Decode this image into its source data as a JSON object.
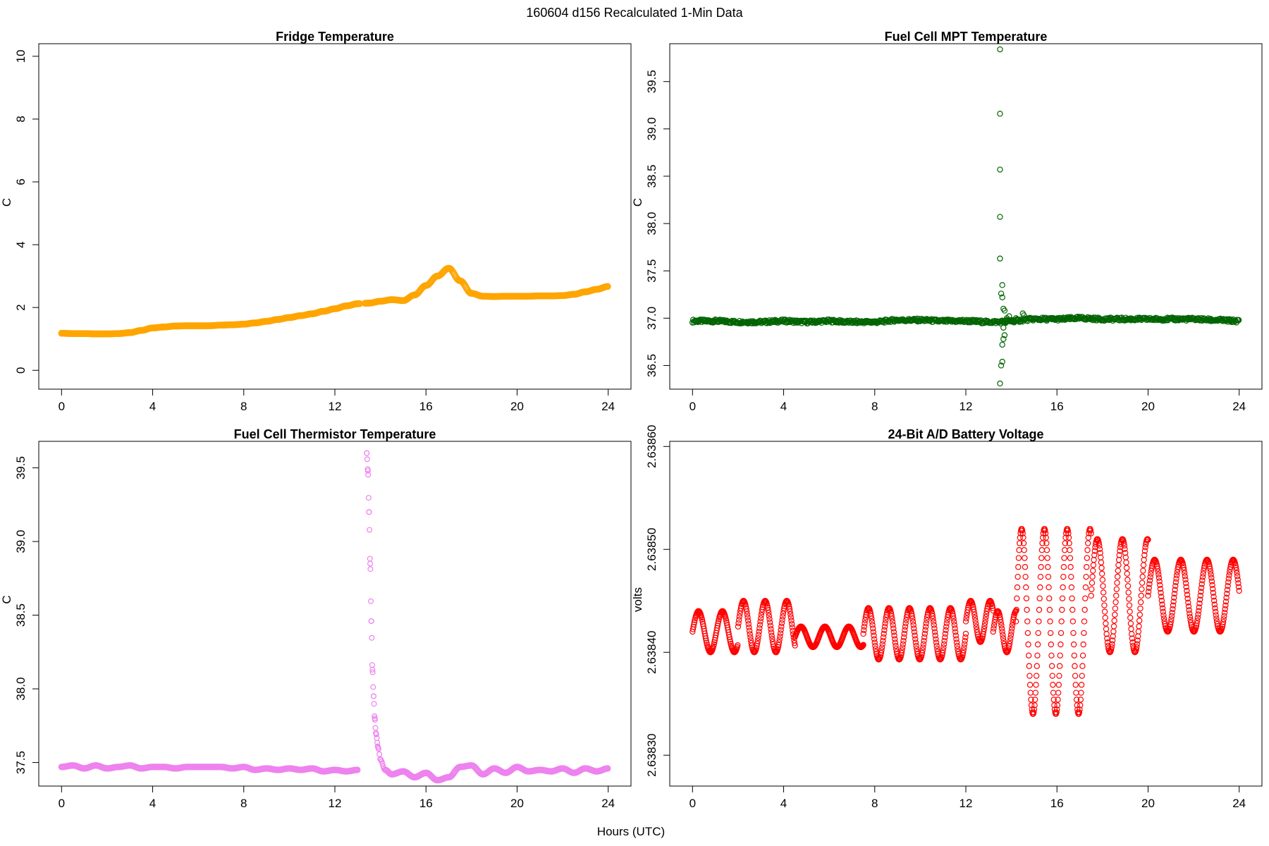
{
  "suptitle": "160604   d156   Recalculated 1-Min Data",
  "xlabel": "Hours (UTC)",
  "chart_data": [
    {
      "type": "scatter",
      "title": "Fridge Temperature",
      "ylabel": "C",
      "color": "#ffa500",
      "xlim": [
        -1,
        25
      ],
      "ylim": [
        -0.6,
        10.4
      ],
      "xticks": [
        0,
        4,
        8,
        12,
        16,
        20,
        24
      ],
      "yticks": [
        0,
        2,
        4,
        6,
        8,
        10
      ],
      "ytick_labels": [
        "0",
        "2",
        "4",
        "6",
        "8",
        "10"
      ],
      "x": [
        0.0,
        0.5,
        1.0,
        1.5,
        2.0,
        2.5,
        3.0,
        3.5,
        4.0,
        4.5,
        5.0,
        5.5,
        6.0,
        6.5,
        7.0,
        7.5,
        8.0,
        8.5,
        9.0,
        9.5,
        10.0,
        10.5,
        11.0,
        11.5,
        12.0,
        12.5,
        13.0,
        13.5,
        14.0,
        14.5,
        15.0,
        15.5,
        16.0,
        16.5,
        17.0,
        17.5,
        18.0,
        18.5,
        19.0,
        19.5,
        20.0,
        20.5,
        21.0,
        21.5,
        22.0,
        22.5,
        23.0,
        23.5,
        24.0
      ],
      "y": [
        1.18,
        1.17,
        1.17,
        1.16,
        1.16,
        1.17,
        1.2,
        1.27,
        1.35,
        1.38,
        1.41,
        1.42,
        1.42,
        1.42,
        1.44,
        1.45,
        1.47,
        1.51,
        1.56,
        1.62,
        1.68,
        1.74,
        1.8,
        1.88,
        1.96,
        2.05,
        2.12,
        2.14,
        2.2,
        2.25,
        2.22,
        2.4,
        2.7,
        3.0,
        3.25,
        2.85,
        2.45,
        2.36,
        2.35,
        2.36,
        2.36,
        2.36,
        2.37,
        2.37,
        2.38,
        2.42,
        2.5,
        2.58,
        2.67
      ],
      "gaps": [
        [
          13.1,
          13.3
        ]
      ]
    },
    {
      "type": "scatter",
      "title": "Fuel Cell MPT Temperature",
      "ylabel": "C",
      "color": "#006400",
      "xlim": [
        -1,
        25
      ],
      "ylim": [
        36.25,
        39.9
      ],
      "xticks": [
        0,
        4,
        8,
        12,
        16,
        20,
        24
      ],
      "yticks": [
        36.5,
        37.0,
        37.5,
        38.0,
        38.5,
        39.0,
        39.5
      ],
      "ytick_labels": [
        "36.5",
        "37.0",
        "37.5",
        "38.0",
        "38.5",
        "39.0",
        "39.5"
      ],
      "x": [
        0.0,
        1.0,
        2.0,
        3.0,
        4.0,
        5.0,
        6.0,
        7.0,
        8.0,
        9.0,
        10.0,
        11.0,
        12.0,
        13.0,
        13.4,
        14.0,
        15.0,
        16.0,
        17.0,
        18.0,
        19.0,
        20.0,
        21.0,
        22.0,
        23.0,
        24.0
      ],
      "y": [
        36.97,
        36.97,
        36.96,
        36.96,
        36.97,
        36.96,
        36.97,
        36.96,
        36.96,
        36.98,
        36.98,
        36.97,
        36.97,
        36.96,
        36.96,
        36.97,
        36.99,
        36.99,
        37.0,
        36.99,
        36.99,
        36.99,
        36.99,
        36.99,
        36.98,
        36.97
      ],
      "outliers": {
        "x": [
          13.5,
          13.5,
          13.5,
          13.5,
          13.5,
          13.55,
          13.6,
          13.6,
          13.65,
          13.7,
          13.6,
          13.65,
          13.7,
          13.55,
          13.6,
          13.65,
          13.75,
          13.8,
          13.85,
          13.9,
          14.0,
          14.2,
          14.5,
          14.55
        ],
        "y": [
          39.84,
          39.16,
          38.57,
          38.07,
          37.63,
          37.26,
          37.22,
          37.35,
          37.1,
          37.08,
          36.72,
          36.78,
          36.82,
          36.5,
          36.54,
          36.9,
          36.95,
          37.0,
          36.97,
          37.02,
          36.98,
          37.0,
          37.05,
          37.03
        ]
      },
      "spike_low": 36.31
    },
    {
      "type": "scatter",
      "title": "Fuel Cell Thermistor Temperature",
      "ylabel": "C",
      "color": "#ee82ee",
      "xlim": [
        -1,
        25
      ],
      "ylim": [
        37.34,
        39.68
      ],
      "xticks": [
        0,
        4,
        8,
        12,
        16,
        20,
        24
      ],
      "yticks": [
        37.5,
        38.0,
        38.5,
        39.0,
        39.5
      ],
      "ytick_labels": [
        "37.5",
        "38.0",
        "38.5",
        "39.0",
        "39.5"
      ],
      "x": [
        0.0,
        0.5,
        1.0,
        1.5,
        2.0,
        2.5,
        3.0,
        3.5,
        4.0,
        4.5,
        5.0,
        5.5,
        6.0,
        6.5,
        7.0,
        7.5,
        8.0,
        8.5,
        9.0,
        9.5,
        10.0,
        10.5,
        11.0,
        11.5,
        12.0,
        12.5,
        13.0
      ],
      "y": [
        37.47,
        37.48,
        37.46,
        37.48,
        37.46,
        37.47,
        37.48,
        37.46,
        37.47,
        37.47,
        37.46,
        37.47,
        37.47,
        37.47,
        37.47,
        37.46,
        37.47,
        37.45,
        37.46,
        37.45,
        37.46,
        37.45,
        37.46,
        37.44,
        37.45,
        37.44,
        37.45
      ],
      "decay": {
        "x": [
          13.4,
          13.45,
          13.5,
          13.55,
          13.6,
          13.65,
          13.7,
          13.75,
          13.8,
          13.9,
          14.0,
          14.2,
          14.5,
          15.0,
          15.5,
          16.0,
          16.5,
          17.0,
          17.5,
          18.0,
          18.5,
          19.0,
          19.5,
          20.0,
          20.5,
          21.0,
          21.5,
          22.0,
          22.5,
          23.0,
          23.5,
          24.0
        ],
        "y": [
          39.6,
          39.48,
          39.2,
          38.85,
          38.46,
          38.13,
          37.95,
          37.8,
          37.7,
          37.6,
          37.52,
          37.45,
          37.42,
          37.44,
          37.4,
          37.43,
          37.38,
          37.4,
          37.47,
          37.48,
          37.42,
          37.46,
          37.43,
          37.47,
          37.44,
          37.45,
          37.44,
          37.46,
          37.43,
          37.46,
          37.44,
          37.46
        ]
      }
    },
    {
      "type": "scatter",
      "title": "24-Bit A/D Battery Voltage",
      "ylabel": "volts",
      "color": "#ff0000",
      "xlim": [
        -1,
        25
      ],
      "ylim": [
        2.63827,
        2.638605
      ],
      "xticks": [
        0,
        4,
        8,
        12,
        16,
        20,
        24
      ],
      "yticks": [
        2.6383,
        2.6384,
        2.6385,
        2.6386
      ],
      "ytick_labels": [
        "2.63830",
        "2.63840",
        "2.63850",
        "2.63860"
      ],
      "oscillation": [
        {
          "t0": 0.0,
          "t1": 2.0,
          "center": 2.63842,
          "amp": 2e-05,
          "period": 1.05
        },
        {
          "t0": 2.0,
          "t1": 4.5,
          "center": 2.638425,
          "amp": 2.5e-05,
          "period": 0.95
        },
        {
          "t0": 4.5,
          "t1": 7.5,
          "center": 2.638415,
          "amp": 1e-05,
          "period": 1.05
        },
        {
          "t0": 7.5,
          "t1": 12.0,
          "center": 2.638418,
          "amp": 2.5e-05,
          "period": 0.9
        },
        {
          "t0": 12.0,
          "t1": 13.2,
          "center": 2.63843,
          "amp": 2e-05,
          "period": 0.85
        },
        {
          "t0": 13.2,
          "t1": 14.2,
          "center": 2.63842,
          "amp": 2e-05,
          "period": 0.8
        },
        {
          "t0": 14.2,
          "t1": 17.5,
          "center": 2.63843,
          "amp": 9e-05,
          "period": 1.0
        },
        {
          "t0": 17.5,
          "t1": 20.0,
          "center": 2.638455,
          "amp": 5.5e-05,
          "period": 1.1
        },
        {
          "t0": 20.0,
          "t1": 24.0,
          "center": 2.638455,
          "amp": 3.5e-05,
          "period": 1.15
        }
      ]
    }
  ]
}
